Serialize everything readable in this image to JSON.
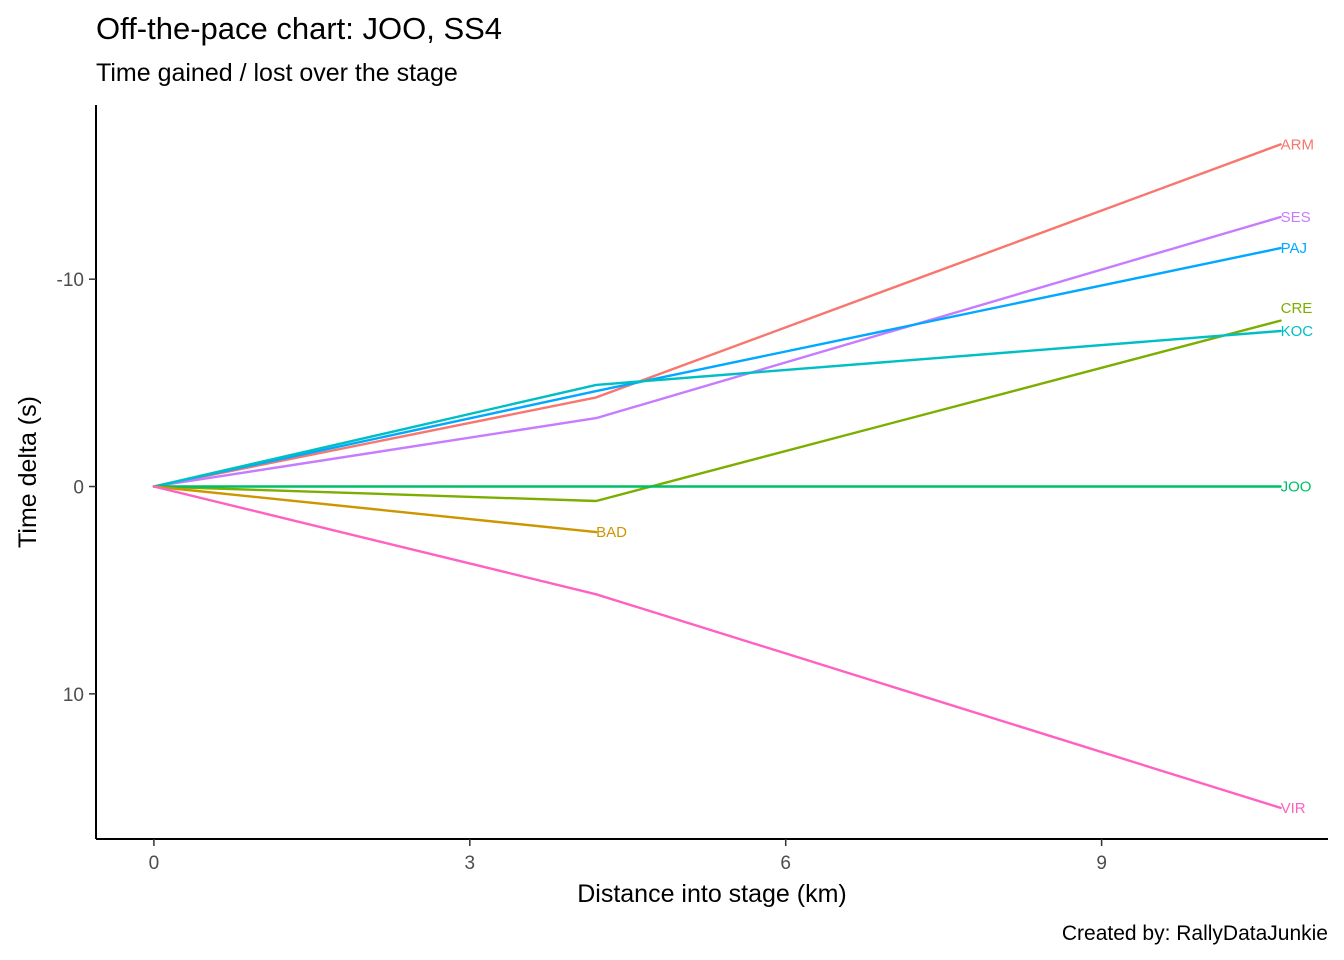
{
  "chart_data": {
    "type": "line",
    "title": "Off-the-pace chart: JOO, SS4",
    "subtitle": "Time gained / lost over the stage",
    "caption": "Created by: RallyDataJunkie",
    "xlabel": "Distance into stage (km)",
    "ylabel": "Time delta (s)",
    "xlim": [
      -0.55,
      11.15
    ],
    "ylim": [
      -18.4,
      17.0
    ],
    "y_reversed": true,
    "x_ticks": [
      0,
      3,
      6,
      9
    ],
    "x_tick_labels": [
      "0",
      "3",
      "6",
      "9"
    ],
    "y_ticks": [
      -10,
      0,
      10
    ],
    "y_tick_labels": [
      "-10",
      "0",
      "10"
    ],
    "grid": false,
    "legend": "none",
    "series": [
      {
        "name": "ARM",
        "color": "#F8766D",
        "x": [
          0,
          4.2,
          10.7
        ],
        "y": [
          0,
          -4.3,
          -16.5
        ]
      },
      {
        "name": "SES",
        "color": "#C77CFF",
        "x": [
          0,
          4.2,
          10.7
        ],
        "y": [
          0,
          -3.3,
          -13.0
        ]
      },
      {
        "name": "PAJ",
        "color": "#00A9FF",
        "x": [
          0,
          4.2,
          10.7
        ],
        "y": [
          0,
          -4.6,
          -11.5
        ]
      },
      {
        "name": "CRE",
        "color": "#7CAE00",
        "x": [
          0,
          4.2,
          10.7
        ],
        "y": [
          0,
          0.7,
          -8.0
        ]
      },
      {
        "name": "KOC",
        "color": "#00BFC4",
        "x": [
          0,
          4.2,
          10.7
        ],
        "y": [
          0,
          -4.9,
          -7.5
        ]
      },
      {
        "name": "JOO",
        "color": "#00BE67",
        "x": [
          0,
          4.2,
          10.7
        ],
        "y": [
          0,
          0,
          0
        ]
      },
      {
        "name": "BAD",
        "color": "#CD9600",
        "x": [
          0,
          4.2
        ],
        "y": [
          0,
          2.2
        ]
      },
      {
        "name": "VIR",
        "color": "#FF61C3",
        "x": [
          0,
          4.2,
          10.7
        ],
        "y": [
          0,
          5.2,
          15.5
        ]
      }
    ],
    "end_labels": [
      {
        "text": "ARM",
        "series": "ARM",
        "x": 10.7,
        "y": -16.5
      },
      {
        "text": "SES",
        "series": "SES",
        "x": 10.7,
        "y": -13.0
      },
      {
        "text": "PAJ",
        "series": "PAJ",
        "x": 10.7,
        "y": -11.5
      },
      {
        "text": "CRE",
        "series": "CRE",
        "x": 10.7,
        "y": -8.6
      },
      {
        "text": "KOC",
        "series": "KOC",
        "x": 10.7,
        "y": -7.5
      },
      {
        "text": "JOO",
        "series": "JOO",
        "x": 10.7,
        "y": 0
      },
      {
        "text": "BAD",
        "series": "BAD",
        "x": 4.2,
        "y": 2.2
      },
      {
        "text": "VIR",
        "series": "VIR",
        "x": 10.7,
        "y": 15.5
      }
    ]
  }
}
